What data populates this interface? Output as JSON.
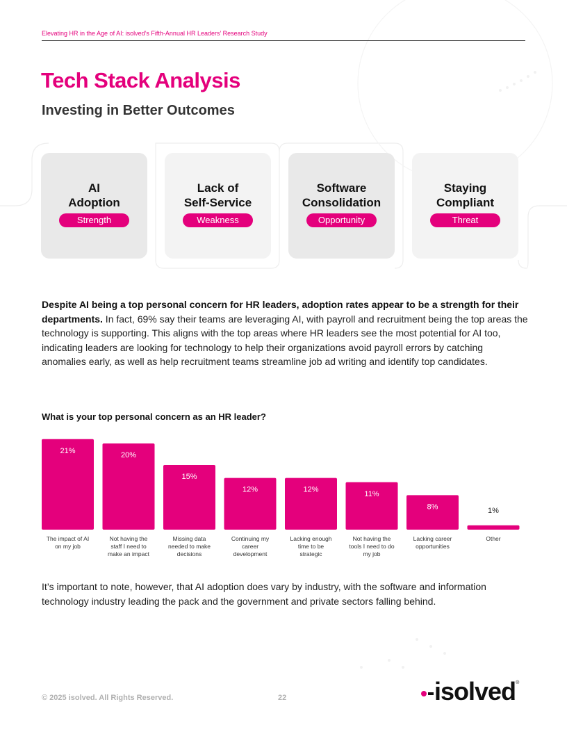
{
  "header": {
    "running_title": "Elevating HR in the Age of AI: isolved’s Fifth-Annual HR Leaders’ Research Study"
  },
  "page": {
    "title": "Tech Stack Analysis",
    "subtitle": "Investing in Better Outcomes"
  },
  "swot": [
    {
      "title": "AI\nAdoption",
      "badge": "Strength"
    },
    {
      "title": "Lack of\nSelf-Service",
      "badge": "Weakness"
    },
    {
      "title": "Software\nConsolidation",
      "badge": "Opportunity"
    },
    {
      "title": "Staying\nCompliant",
      "badge": "Threat"
    }
  ],
  "body": {
    "lead_bold": "Despite AI being a top personal concern for HR leaders, adoption rates appear to be a strength for their departments.",
    "lead_rest": " In fact, 69% say their teams are leveraging AI, with payroll and recruitment being the top areas the technology is supporting. This aligns with the top areas where HR leaders see the most potential for AI too, indicating leaders are looking for technology to help their organizations avoid payroll errors by catching anomalies early, as well as help recruitment teams streamline job ad writing and identify top candidates."
  },
  "chart_title": "What is your top personal concern as an HR leader?",
  "chart_data": {
    "type": "bar",
    "title": "What is your top personal concern as an HR leader?",
    "categories": [
      "The impact of AI on my job",
      "Not having the staff I need to make an impact",
      "Missing data needed to make decisions",
      "Continuing my career development",
      "Lacking enough time to be strategic",
      "Not having the tools I need to do my job",
      "Lacking career opportunities",
      "Other"
    ],
    "category_lines": [
      [
        "The impact of AI",
        "on my job"
      ],
      [
        "Not having the",
        "staff I need to",
        "make an impact"
      ],
      [
        "Missing data",
        "needed to make",
        "decisions"
      ],
      [
        "Continuing my",
        "career",
        "development"
      ],
      [
        "Lacking enough",
        "time to be",
        "strategic"
      ],
      [
        "Not having the",
        "tools I need to do",
        "my job"
      ],
      [
        "Lacking career",
        "opportunities"
      ],
      [
        "Other"
      ]
    ],
    "values": [
      21,
      20,
      15,
      12,
      12,
      11,
      8,
      1
    ],
    "labels": [
      "21%",
      "20%",
      "15%",
      "12%",
      "12%",
      "11%",
      "8%",
      "1%"
    ],
    "bar_color": "#e4007c",
    "grid": false,
    "legend": "none"
  },
  "closing": {
    "text": "It’s important to note, however, that AI adoption does vary by industry, with the software and information technology industry leading the pack and the government and private sectors falling behind."
  },
  "footer": {
    "copyright": "© 2025 isolved. All Rights Reserved.",
    "page_number": "22",
    "logo_text": "isolved",
    "logo_mark": "®"
  },
  "colors": {
    "accent": "#e4007c",
    "card_gray": "#e9e9e9",
    "card_light": "#f3f3f3"
  }
}
